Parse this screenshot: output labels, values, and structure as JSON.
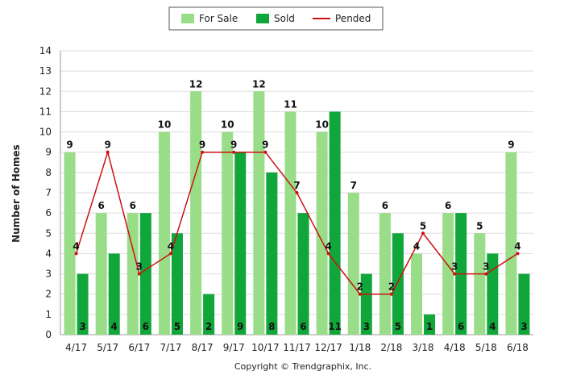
{
  "chart_data": {
    "type": "bar",
    "title": "",
    "xlabel": "",
    "ylabel": "Number of Homes",
    "ylim": [
      0,
      14
    ],
    "yticks": [
      0,
      1,
      2,
      3,
      4,
      5,
      6,
      7,
      8,
      9,
      10,
      11,
      12,
      13,
      14
    ],
    "grid": true,
    "legend_position": "top-center",
    "categories": [
      "4/17",
      "5/17",
      "6/17",
      "7/17",
      "8/17",
      "9/17",
      "10/17",
      "11/17",
      "12/17",
      "1/18",
      "2/18",
      "3/18",
      "4/18",
      "5/18",
      "6/18"
    ],
    "series": [
      {
        "name": "For Sale",
        "kind": "bar",
        "color": "#99dd88",
        "values": [
          9,
          6,
          6,
          10,
          12,
          10,
          12,
          11,
          10,
          7,
          6,
          4,
          6,
          5,
          9
        ]
      },
      {
        "name": "Sold",
        "kind": "bar",
        "color": "#11a63a",
        "values": [
          3,
          4,
          6,
          5,
          2,
          9,
          8,
          6,
          11,
          3,
          5,
          1,
          6,
          4,
          3
        ]
      },
      {
        "name": "Pended",
        "kind": "line",
        "color": "#cc1111",
        "values": [
          4,
          9,
          3,
          4,
          9,
          9,
          9,
          7,
          4,
          2,
          2,
          5,
          3,
          3,
          4
        ]
      }
    ],
    "copyright": "Copyright © Trendgraphix, Inc."
  }
}
